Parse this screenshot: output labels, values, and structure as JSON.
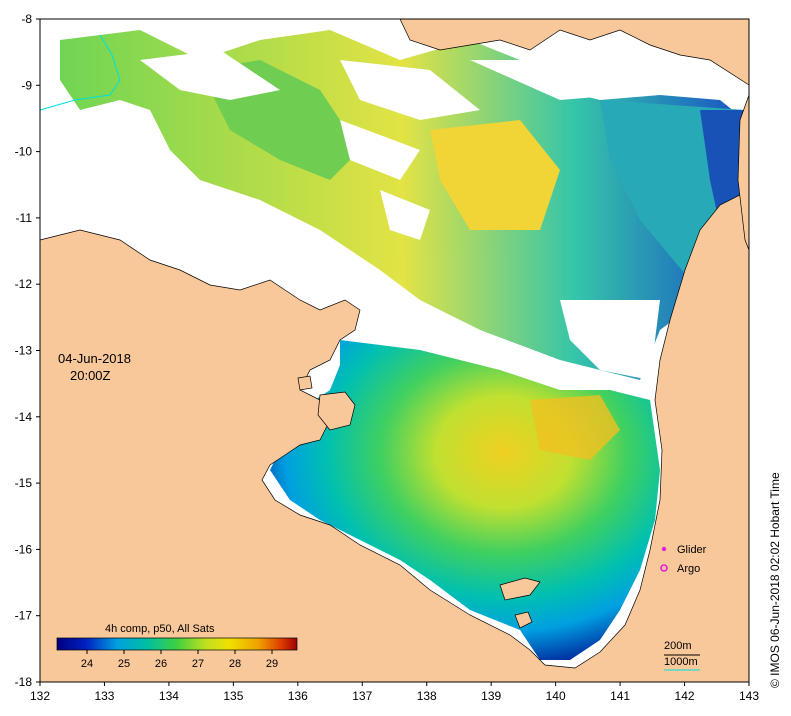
{
  "map": {
    "date": "04-Jun-2018",
    "time": "20:00Z",
    "credit": "© IMOS 06-Jun-2018 02:02 Hobart Time",
    "x_axis": {
      "ticks": [
        "132",
        "133",
        "134",
        "135",
        "136",
        "137",
        "138",
        "139",
        "140",
        "141",
        "142",
        "143"
      ]
    },
    "y_axis": {
      "ticks": [
        "-8",
        "-9",
        "-10",
        "-11",
        "-12",
        "-13",
        "-14",
        "-15",
        "-16",
        "-17",
        "-18"
      ]
    },
    "colorbar": {
      "title": "4h comp, p50, All Sats",
      "ticks": [
        "24",
        "25",
        "26",
        "27",
        "28",
        "29"
      ]
    },
    "legend": {
      "glider": "Glider",
      "argo": "Argo",
      "contour_200": "200m",
      "contour_1000": "1000m"
    },
    "colors": {
      "land": "#f8c89a",
      "no_data": "#ffffff",
      "glider_marker": "#e020e0",
      "argo_marker": "#e020e0",
      "contour_200": "#000000",
      "contour_1000": "#00e0e0"
    }
  }
}
